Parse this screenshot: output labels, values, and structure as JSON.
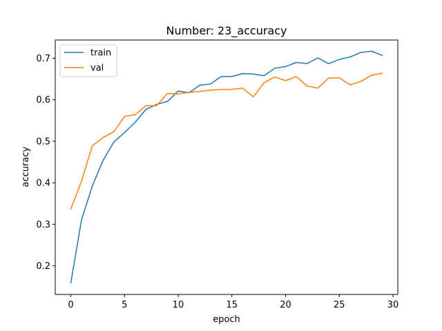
{
  "chart_data": {
    "type": "line",
    "title": "Number: 23_accuracy",
    "xlabel": "epoch",
    "ylabel": "accuracy",
    "xlim": [
      -1.45,
      30.45
    ],
    "ylim": [
      0.131,
      0.744
    ],
    "xticks": [
      0,
      5,
      10,
      15,
      20,
      25,
      30
    ],
    "yticks": [
      0.2,
      0.3,
      0.4,
      0.5,
      0.6,
      0.7
    ],
    "xtick_labels": [
      "0",
      "5",
      "10",
      "15",
      "20",
      "25",
      "30"
    ],
    "ytick_labels": [
      "0.2",
      "0.3",
      "0.4",
      "0.5",
      "0.6",
      "0.7"
    ],
    "grid": false,
    "legend_position": "upper-left",
    "x": [
      0,
      1,
      2,
      3,
      4,
      5,
      6,
      7,
      8,
      9,
      10,
      11,
      12,
      13,
      14,
      15,
      16,
      17,
      18,
      19,
      20,
      21,
      22,
      23,
      24,
      25,
      26,
      27,
      28,
      29
    ],
    "series": [
      {
        "name": "train",
        "color": "#1f77b4",
        "values": [
          0.159,
          0.311,
          0.392,
          0.454,
          0.498,
          0.521,
          0.546,
          0.577,
          0.589,
          0.596,
          0.621,
          0.617,
          0.635,
          0.638,
          0.656,
          0.656,
          0.663,
          0.662,
          0.658,
          0.676,
          0.68,
          0.69,
          0.687,
          0.701,
          0.687,
          0.697,
          0.703,
          0.714,
          0.717,
          0.707
        ]
      },
      {
        "name": "val",
        "color": "#ff7f0e",
        "values": [
          0.337,
          0.404,
          0.489,
          0.509,
          0.523,
          0.56,
          0.564,
          0.586,
          0.586,
          0.615,
          0.614,
          0.618,
          0.62,
          0.623,
          0.625,
          0.625,
          0.628,
          0.607,
          0.641,
          0.655,
          0.646,
          0.656,
          0.633,
          0.628,
          0.652,
          0.653,
          0.636,
          0.644,
          0.659,
          0.664
        ]
      }
    ]
  }
}
